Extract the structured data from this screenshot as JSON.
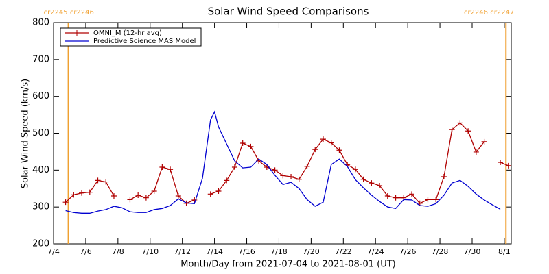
{
  "chart_data": {
    "type": "line",
    "title": "Solar Wind Speed Comparisons",
    "x_label": "Month/Day from 2021-07-04 to 2021-08-01 (UT)",
    "y_label": "Solar Wind Speed (km/s)",
    "xlim": [
      0,
      28.43
    ],
    "ylim": [
      200,
      800
    ],
    "yticks": [
      200,
      300,
      400,
      500,
      600,
      700,
      800
    ],
    "xticks": [
      {
        "value": 0,
        "label": "7/4"
      },
      {
        "value": 2,
        "label": "7/6"
      },
      {
        "value": 4,
        "label": "7/8"
      },
      {
        "value": 6,
        "label": "7/10"
      },
      {
        "value": 8,
        "label": "7/12"
      },
      {
        "value": 10,
        "label": "7/14"
      },
      {
        "value": 12,
        "label": "7/16"
      },
      {
        "value": 14,
        "label": "7/18"
      },
      {
        "value": 16,
        "label": "7/20"
      },
      {
        "value": 18,
        "label": "7/22"
      },
      {
        "value": 20,
        "label": "7/24"
      },
      {
        "value": 22,
        "label": "7/26"
      },
      {
        "value": 24,
        "label": "7/28"
      },
      {
        "value": 26,
        "label": "7/30"
      },
      {
        "value": 28,
        "label": "8/1"
      }
    ],
    "legend": "upper left",
    "annotations": [
      {
        "x": 0.92,
        "label": "cr2245 cr2246",
        "color": "#f0a030"
      },
      {
        "x": 28.1,
        "label": "cr2246 cr2247",
        "color": "#f0a030"
      }
    ],
    "series": [
      {
        "name": "OMNI_M (12-hr avg)",
        "color": "#b00000",
        "marker": "+",
        "x": [
          0.75,
          1.25,
          1.75,
          2.25,
          2.75,
          3.25,
          3.75,
          4.25,
          4.75,
          5.25,
          5.75,
          6.25,
          6.75,
          7.25,
          7.75,
          8.25,
          8.75,
          9.25,
          9.75,
          10.25,
          10.75,
          11.25,
          11.75,
          12.25,
          12.75,
          13.25,
          13.75,
          14.25,
          14.75,
          15.25,
          15.75,
          16.25,
          16.75,
          17.25,
          17.75,
          18.25,
          18.75,
          19.25,
          19.75,
          20.25,
          20.75,
          21.25,
          21.75,
          22.25,
          22.75,
          23.25,
          23.75,
          24.25,
          24.75,
          25.25,
          25.75,
          26.25,
          26.75,
          27.25,
          27.75,
          28.25
        ],
        "values": [
          313,
          333,
          338,
          340,
          372,
          368,
          330,
          null,
          320,
          332,
          325,
          343,
          408,
          402,
          330,
          310,
          319,
          null,
          335,
          343,
          372,
          408,
          473,
          464,
          425,
          408,
          400,
          385,
          382,
          375,
          410,
          456,
          484,
          474,
          454,
          415,
          402,
          375,
          365,
          358,
          330,
          325,
          325,
          335,
          310,
          320,
          320,
          382,
          510,
          528,
          506,
          449,
          477,
          null,
          421,
          412
        ]
      },
      {
        "name": "Predictive Science MAS Model",
        "color": "#0000d0",
        "x": [
          0.75,
          1.25,
          1.75,
          2.25,
          2.75,
          3.25,
          3.75,
          4.25,
          4.75,
          5.25,
          5.75,
          6.25,
          6.75,
          7.25,
          7.75,
          8.25,
          8.75,
          9.25,
          9.75,
          10,
          10.25,
          10.75,
          11.25,
          11.75,
          12.25,
          12.75,
          13.25,
          13.75,
          14.25,
          14.75,
          15.25,
          15.75,
          16.25,
          16.75,
          17.25,
          17.75,
          18.25,
          18.75,
          19.25,
          19.75,
          20.25,
          20.75,
          21.25,
          21.75,
          22.25,
          22.75,
          23.25,
          23.75,
          24.25,
          24.75,
          25.25,
          25.75,
          26.25,
          26.75,
          27.25,
          27.75
        ],
        "values": [
          290,
          285,
          283,
          283,
          289,
          293,
          302,
          298,
          287,
          285,
          285,
          293,
          296,
          304,
          322,
          311,
          309,
          378,
          536,
          558,
          517,
          471,
          425,
          406,
          408,
          430,
          415,
          386,
          361,
          367,
          350,
          320,
          302,
          313,
          415,
          430,
          410,
          374,
          352,
          332,
          315,
          300,
          296,
          320,
          319,
          304,
          302,
          309,
          332,
          365,
          372,
          356,
          335,
          319,
          306,
          294
        ]
      }
    ]
  }
}
